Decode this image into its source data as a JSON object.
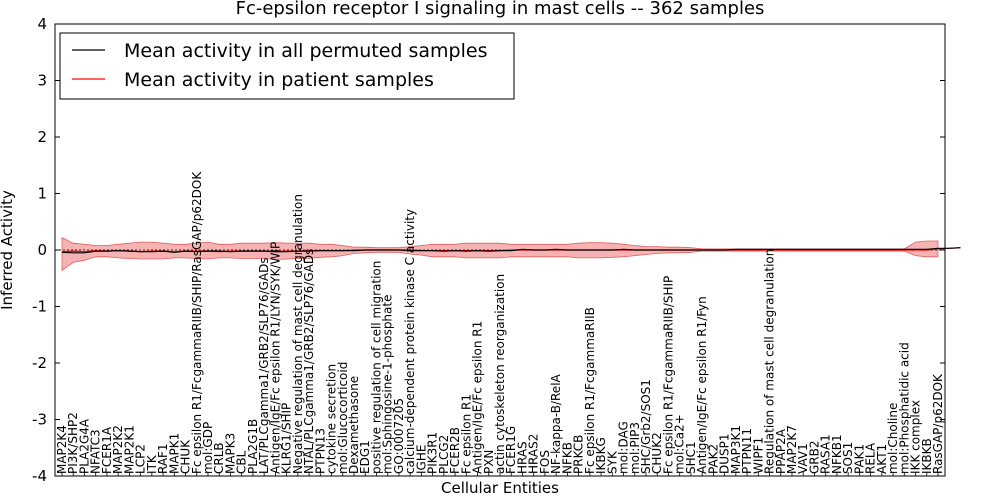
{
  "chart_data": {
    "type": "line",
    "title": "Fc-epsilon receptor I signaling in mast cells -- 362 samples",
    "xlabel": "Cellular Entities",
    "ylabel": "Inferred Activity",
    "ylim": [
      -4,
      4
    ],
    "yticks": [
      -4,
      -3,
      -2,
      -1,
      0,
      1,
      2,
      3,
      4
    ],
    "legend_position": "top-left",
    "series": [
      {
        "name": "Mean activity in all permuted samples",
        "color": "#000000"
      },
      {
        "name": "Mean activity in patient samples",
        "color": "#ff0000"
      }
    ],
    "band_color": "#f08080",
    "categories": [
      "MAP2K4",
      "PI3K/SHP2",
      "PLA2G4A",
      "NFATC3",
      "FCER1A",
      "MAP2K2",
      "MAP2K1",
      "LCP2",
      "ITK",
      "RAF1",
      "MAPK1",
      "CHUK",
      "Fc epsilon R1/FcgammaRIIB/SHIP/RasGAP/p62DOK",
      "mol:GDP",
      "CRLB",
      "MAPK3",
      "CBL",
      "PLA2G1B",
      "LAT/PLCgamma1/GRB2/SLP76/GADs",
      "Antigen/IgE/Fc epsilon R1/LYN/SYK/WIP",
      "KLRG1/SHIP",
      "Negative regulation of mast cell degranulation",
      "NTAL/PLCgamma1/GRB2/SLP76/GADs",
      "PTPN13",
      "cytokine secretion",
      "mol:Glucocorticoid",
      "Dexamethasone",
      "EDG1",
      "positive regulation of cell migration",
      "mol:Sphingosine-1-phosphate",
      "GO:0007205",
      "calcium-dependent protein kinase C activity",
      "IGHE",
      "PIK3R1",
      "PLCG2",
      "FCER2B",
      "Fc epsilon R1",
      "Antigen/IgE/Fc epsilon R1",
      "PXN",
      "actin cytoskeleton reorganization",
      "FCER1G",
      "HRAS",
      "HRAS2",
      "FOS",
      "NF-kappa-B/RelA",
      "NFKB",
      "PRKCB",
      "Fc epsilon R1/FcgammaRIIB",
      "IKBKG",
      "SYK",
      "mol:DAG",
      "mol:PIP3",
      "SHC/Grb2/SOS1",
      "CHUK2",
      "Fc epsilon R1/FcgammaRIIB/SHIP",
      "mol:Ca2+",
      "SHC1",
      "Antigen/IgE/Fc epsilon R1/Fyn",
      "PAK2",
      "DUSP1",
      "MAP3K1",
      "PTPN11",
      "WIPF1",
      "Regulation of mast cell degranulation",
      "PPAP2A",
      "MAP2K7",
      "VAV1",
      "GRB2",
      "RASA1",
      "NFKB1",
      "SOS1",
      "PAK1",
      "RELA",
      "AKT1",
      "mol:Choline",
      "mol:Phosphatidic acid",
      "IKK complex",
      "IKBKB",
      "RasGAP/p62DOK"
    ],
    "perm_mean": [
      -0.04,
      -0.05,
      -0.05,
      -0.02,
      -0.02,
      -0.01,
      -0.02,
      -0.03,
      -0.03,
      -0.02,
      -0.04,
      -0.02,
      -0.03,
      -0.02,
      -0.02,
      -0.03,
      -0.02,
      -0.02,
      -0.02,
      -0.03,
      -0.03,
      -0.02,
      -0.02,
      -0.01,
      -0.01,
      -0.01,
      -0.01,
      0.0,
      0.0,
      0.0,
      0.0,
      -0.01,
      -0.01,
      -0.01,
      -0.02,
      -0.01,
      -0.02,
      -0.01,
      -0.02,
      -0.01,
      -0.01,
      0.01,
      0.0,
      0.0,
      0.01,
      0.0,
      0.0,
      0.0,
      0.0,
      0.0,
      0.01,
      0.0,
      0.0,
      0.0,
      0.0,
      0.0,
      0.0,
      0.0,
      0.0,
      0.0,
      0.01,
      0.01,
      0.01,
      0.01,
      0.01,
      0.01,
      0.01,
      0.01,
      0.01,
      0.01,
      0.01,
      0.01,
      0.01,
      0.01,
      0.01,
      0.01,
      0.01,
      0.01,
      0.03,
      0.03,
      0.04
    ],
    "patient_mean": [
      -0.03,
      -0.02,
      -0.03,
      -0.01,
      -0.02,
      -0.01,
      -0.02,
      -0.03,
      -0.02,
      -0.02,
      -0.03,
      -0.02,
      -0.02,
      -0.02,
      -0.03,
      -0.02,
      -0.02,
      -0.02,
      -0.02,
      -0.03,
      -0.02,
      -0.02,
      -0.01,
      -0.01,
      -0.01,
      -0.01,
      0.0,
      0.0,
      0.0,
      0.0,
      0.0,
      0.0,
      -0.01,
      -0.01,
      -0.01,
      -0.01,
      -0.01,
      -0.01,
      -0.01,
      -0.01,
      0.0,
      0.0,
      0.0,
      0.0,
      0.0,
      0.0,
      0.0,
      0.0,
      0.0,
      0.0,
      0.0,
      0.0,
      0.0,
      0.0,
      0.0,
      0.0,
      0.0,
      0.0,
      0.0,
      0.0,
      0.0,
      0.0,
      0.0,
      0.0,
      0.0,
      0.0,
      0.0,
      0.0,
      0.0,
      0.0,
      0.0,
      0.0,
      0.0,
      0.0,
      0.0,
      0.0,
      0.0,
      0.0,
      0.02,
      0.03,
      0.04
    ],
    "band_upper": [
      0.22,
      0.12,
      0.1,
      0.08,
      0.08,
      0.1,
      0.12,
      0.14,
      0.14,
      0.12,
      0.1,
      0.1,
      0.12,
      0.14,
      0.1,
      0.1,
      0.12,
      0.12,
      0.12,
      0.13,
      0.12,
      0.12,
      0.12,
      0.1,
      0.1,
      0.08,
      0.05,
      0.05,
      0.04,
      0.04,
      0.04,
      0.06,
      0.08,
      0.1,
      0.1,
      0.1,
      0.12,
      0.12,
      0.12,
      0.12,
      0.1,
      0.1,
      0.1,
      0.1,
      0.1,
      0.1,
      0.12,
      0.13,
      0.13,
      0.12,
      0.1,
      0.08,
      0.06,
      0.06,
      0.05,
      0.05,
      0.04,
      0.02,
      0.02,
      0.02,
      0.02,
      0.02,
      0.02,
      0.02,
      0.02,
      0.02,
      0.02,
      0.02,
      0.02,
      0.02,
      0.02,
      0.02,
      0.02,
      0.02,
      0.02,
      0.02,
      0.14,
      0.16,
      0.16,
      0.14,
      0.08
    ],
    "band_lower": [
      -0.36,
      -0.22,
      -0.18,
      -0.12,
      -0.12,
      -0.14,
      -0.15,
      -0.16,
      -0.16,
      -0.16,
      -0.14,
      -0.14,
      -0.15,
      -0.16,
      -0.14,
      -0.14,
      -0.15,
      -0.15,
      -0.15,
      -0.17,
      -0.16,
      -0.15,
      -0.15,
      -0.13,
      -0.12,
      -0.1,
      -0.06,
      -0.05,
      -0.04,
      -0.04,
      -0.04,
      -0.07,
      -0.09,
      -0.12,
      -0.12,
      -0.12,
      -0.14,
      -0.14,
      -0.14,
      -0.14,
      -0.12,
      -0.12,
      -0.12,
      -0.12,
      -0.12,
      -0.12,
      -0.14,
      -0.14,
      -0.14,
      -0.13,
      -0.12,
      -0.1,
      -0.08,
      -0.06,
      -0.05,
      -0.05,
      -0.04,
      -0.02,
      -0.02,
      -0.02,
      -0.02,
      -0.02,
      -0.02,
      -0.02,
      -0.02,
      -0.02,
      -0.02,
      -0.02,
      -0.02,
      -0.02,
      -0.02,
      -0.02,
      -0.02,
      -0.02,
      -0.02,
      -0.02,
      -0.1,
      -0.12,
      -0.12,
      -0.1,
      -0.04
    ]
  }
}
